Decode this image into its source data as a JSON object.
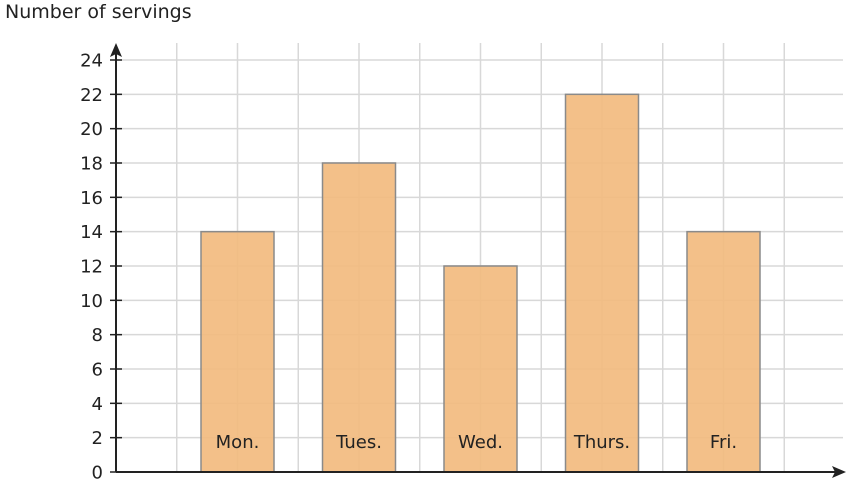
{
  "chart_data": {
    "type": "bar",
    "title": "",
    "xlabel": "",
    "ylabel": "Number of servings",
    "categories": [
      "Mon.",
      "Tues.",
      "Wed.",
      "Thurs.",
      "Fri."
    ],
    "values": [
      14,
      18,
      12,
      22,
      14
    ],
    "ylim": [
      0,
      24
    ],
    "yticks": [
      0,
      2,
      4,
      6,
      8,
      10,
      12,
      14,
      16,
      18,
      20,
      22,
      24
    ],
    "grid": true,
    "bar_color": "#f2bb7f",
    "bar_edge_color": "#8a8a8a",
    "grid_color": "#d8d8d8",
    "axis_color": "#222222"
  }
}
